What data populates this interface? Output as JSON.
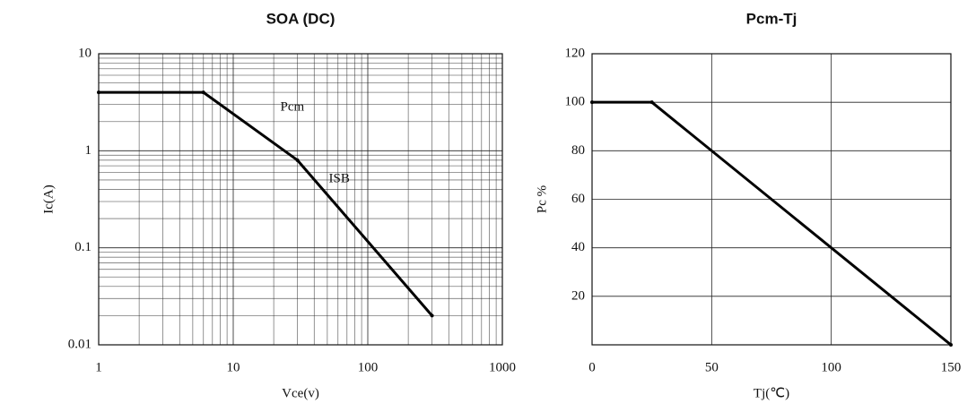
{
  "chart_data": [
    {
      "type": "line",
      "title": "SOA (DC)",
      "x_label": "Vce(v)",
      "y_label": "Ic(A)",
      "x_log": true,
      "y_log": true,
      "grid": true,
      "xlim": [
        1,
        1000
      ],
      "xticks": [
        1,
        10,
        100,
        1000
      ],
      "ylim": [
        0.01,
        10
      ],
      "yticks": [
        0.01,
        0.1,
        1,
        10
      ],
      "series": [
        {
          "name": "DC",
          "color": "#000000",
          "x": [
            1,
            6,
            30,
            300
          ],
          "values": [
            4,
            4,
            0.8,
            0.02
          ]
        }
      ],
      "annotations": [
        "Pcm",
        "ISB"
      ]
    },
    {
      "type": "line",
      "title": "Pcm-Tj",
      "x_label": "Tj(℃)",
      "y_label": "Pc %",
      "grid": true,
      "xlim": [
        0,
        150
      ],
      "xticks": [
        0,
        50,
        100,
        150
      ],
      "ylim": [
        0,
        120
      ],
      "yticks": [
        20,
        40,
        60,
        80,
        100,
        120
      ],
      "series": [
        {
          "name": "Pc",
          "color": "#000000",
          "x": [
            0,
            25,
            150
          ],
          "values": [
            100,
            100,
            0
          ]
        }
      ]
    }
  ]
}
